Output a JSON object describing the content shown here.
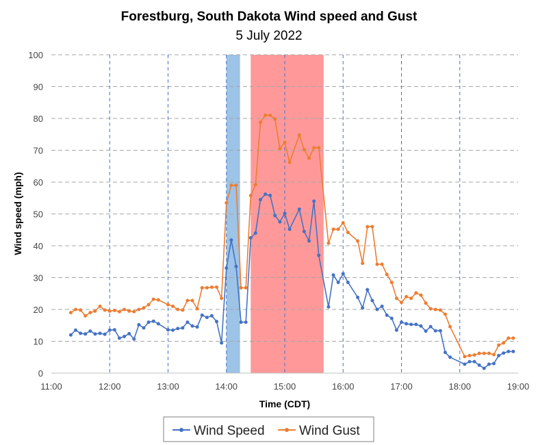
{
  "chart_data": {
    "type": "line",
    "title": "Forestburg, South Dakota Wind speed and Gust",
    "subtitle": "5 July 2022",
    "xlabel": "Time (CDT)",
    "ylabel": "Wind speed (mph)",
    "xlim": [
      "11:00",
      "19:00"
    ],
    "ylim": [
      0,
      100
    ],
    "x_ticks": [
      "11:00",
      "12:00",
      "13:00",
      "14:00",
      "15:00",
      "16:00",
      "17:00",
      "18:00",
      "19:00"
    ],
    "y_ticks": [
      "0",
      "10",
      "20",
      "30",
      "40",
      "50",
      "60",
      "70",
      "80",
      "90",
      "100"
    ],
    "grid": "horizontal dashed gray, vertical dashed blue",
    "legend_position": "bottom",
    "shaded_regions": [
      {
        "start": "14:00",
        "end": "14:14",
        "color": "#9dc3e6"
      },
      {
        "start": "14:25",
        "end": "15:40",
        "color": "#ff9999"
      }
    ],
    "series": [
      {
        "name": "Wind Speed",
        "color": "#4472c4",
        "points": [
          [
            "11:20",
            12
          ],
          [
            "11:25",
            13.5
          ],
          [
            "11:30",
            12.5
          ],
          [
            "11:35",
            12.3
          ],
          [
            "11:40",
            13.2
          ],
          [
            "11:45",
            12.3
          ],
          [
            "11:50",
            12.5
          ],
          [
            "11:55",
            12.2
          ],
          [
            "12:00",
            13.5
          ],
          [
            "12:05",
            13.6
          ],
          [
            "12:10",
            11
          ],
          [
            "12:15",
            11.5
          ],
          [
            "12:20",
            12.4
          ],
          [
            "12:25",
            10.7
          ],
          [
            "12:30",
            15.2
          ],
          [
            "12:35",
            14.2
          ],
          [
            "12:40",
            16
          ],
          [
            "12:45",
            16.3
          ],
          [
            "12:50",
            15.5
          ],
          [
            "13:00",
            13.6
          ],
          [
            "13:05",
            13.5
          ],
          [
            "13:10",
            14
          ],
          [
            "13:15",
            14.2
          ],
          [
            "13:20",
            16
          ],
          [
            "13:25",
            14.8
          ],
          [
            "13:30",
            14.5
          ],
          [
            "13:35",
            18.2
          ],
          [
            "13:40",
            17.5
          ],
          [
            "13:45",
            18
          ],
          [
            "13:50",
            16.2
          ],
          [
            "13:55",
            9.5
          ],
          [
            "14:00",
            33
          ],
          [
            "14:05",
            41.8
          ],
          [
            "14:10",
            33.5
          ],
          [
            "14:15",
            16
          ],
          [
            "14:20",
            16
          ],
          [
            "14:25",
            42.5
          ],
          [
            "14:30",
            44
          ],
          [
            "14:35",
            54.5
          ],
          [
            "14:40",
            56.2
          ],
          [
            "14:45",
            55.8
          ],
          [
            "14:50",
            49.5
          ],
          [
            "14:55",
            47.5
          ],
          [
            "15:00",
            50.2
          ],
          [
            "15:05",
            45.2
          ],
          [
            "15:15",
            51.5
          ],
          [
            "15:20",
            44.5
          ],
          [
            "15:25",
            41.5
          ],
          [
            "15:30",
            54
          ],
          [
            "15:35",
            37
          ],
          [
            "15:45",
            20.8
          ],
          [
            "15:50",
            30.8
          ],
          [
            "15:55",
            28.5
          ],
          [
            "16:00",
            31.2
          ],
          [
            "16:05",
            28.5
          ],
          [
            "16:15",
            23.8
          ],
          [
            "16:20",
            20.5
          ],
          [
            "16:25",
            26.2
          ],
          [
            "16:30",
            22.8
          ],
          [
            "16:35",
            20
          ],
          [
            "16:40",
            21
          ],
          [
            "16:45",
            18.2
          ],
          [
            "16:50",
            17.2
          ],
          [
            "16:55",
            13.5
          ],
          [
            "17:00",
            16
          ],
          [
            "17:05",
            15.5
          ],
          [
            "17:10",
            15.3
          ],
          [
            "17:15",
            15.3
          ],
          [
            "17:20",
            14.8
          ],
          [
            "17:25",
            13.2
          ],
          [
            "17:30",
            14.6
          ],
          [
            "17:35",
            13.3
          ],
          [
            "17:40",
            13.3
          ],
          [
            "17:45",
            6.5
          ],
          [
            "17:50",
            5
          ],
          [
            "18:05",
            2.8
          ],
          [
            "18:10",
            3.6
          ],
          [
            "18:15",
            3.6
          ],
          [
            "18:20",
            2.5
          ],
          [
            "18:25",
            1.5
          ],
          [
            "18:30",
            2.8
          ],
          [
            "18:35",
            3
          ],
          [
            "18:40",
            5.5
          ],
          [
            "18:45",
            6.3
          ],
          [
            "18:50",
            6.8
          ],
          [
            "18:55",
            6.8
          ]
        ]
      },
      {
        "name": "Wind Gust",
        "color": "#ed7d31",
        "points": [
          [
            "11:20",
            19
          ],
          [
            "11:25",
            20
          ],
          [
            "11:30",
            19.8
          ],
          [
            "11:35",
            18
          ],
          [
            "11:40",
            19
          ],
          [
            "11:45",
            19.5
          ],
          [
            "11:50",
            21
          ],
          [
            "11:55",
            19.8
          ],
          [
            "12:00",
            19.5
          ],
          [
            "12:05",
            19.7
          ],
          [
            "12:10",
            19.3
          ],
          [
            "12:15",
            20
          ],
          [
            "12:20",
            19.5
          ],
          [
            "12:25",
            19.3
          ],
          [
            "12:30",
            20
          ],
          [
            "12:35",
            20.5
          ],
          [
            "12:40",
            21.5
          ],
          [
            "12:45",
            23.2
          ],
          [
            "12:50",
            23
          ],
          [
            "13:00",
            21.5
          ],
          [
            "13:05",
            21
          ],
          [
            "13:10",
            20
          ],
          [
            "13:15",
            19.8
          ],
          [
            "13:20",
            22.8
          ],
          [
            "13:25",
            22.8
          ],
          [
            "13:30",
            20.2
          ],
          [
            "13:35",
            26.8
          ],
          [
            "13:40",
            26.8
          ],
          [
            "13:45",
            27
          ],
          [
            "13:50",
            27
          ],
          [
            "13:55",
            23.5
          ],
          [
            "14:00",
            53.5
          ],
          [
            "14:05",
            59
          ],
          [
            "14:10",
            59
          ],
          [
            "14:15",
            26.8
          ],
          [
            "14:20",
            26.8
          ],
          [
            "14:25",
            55.8
          ],
          [
            "14:30",
            59.2
          ],
          [
            "14:35",
            78.8
          ],
          [
            "14:40",
            81
          ],
          [
            "14:45",
            81
          ],
          [
            "14:50",
            79.8
          ],
          [
            "14:55",
            70.5
          ],
          [
            "15:00",
            72.5
          ],
          [
            "15:05",
            66.2
          ],
          [
            "15:15",
            74.8
          ],
          [
            "15:20",
            70.2
          ],
          [
            "15:25",
            67.5
          ],
          [
            "15:30",
            70.8
          ],
          [
            "15:35",
            70.8
          ],
          [
            "15:45",
            40.8
          ],
          [
            "15:50",
            45.2
          ],
          [
            "15:55",
            45.2
          ],
          [
            "16:00",
            47.2
          ],
          [
            "16:05",
            44.2
          ],
          [
            "16:15",
            41.5
          ],
          [
            "16:20",
            34.5
          ],
          [
            "16:25",
            46
          ],
          [
            "16:30",
            46
          ],
          [
            "16:35",
            34.2
          ],
          [
            "16:40",
            34.2
          ],
          [
            "16:45",
            31
          ],
          [
            "16:50",
            28.5
          ],
          [
            "16:55",
            23.5
          ],
          [
            "17:00",
            22.2
          ],
          [
            "17:05",
            24
          ],
          [
            "17:10",
            23.5
          ],
          [
            "17:15",
            25.2
          ],
          [
            "17:20",
            24.5
          ],
          [
            "17:25",
            22
          ],
          [
            "17:30",
            20.2
          ],
          [
            "17:35",
            20
          ],
          [
            "17:40",
            19.8
          ],
          [
            "17:45",
            18.5
          ],
          [
            "17:50",
            14.6
          ],
          [
            "18:05",
            5.2
          ],
          [
            "18:10",
            5.5
          ],
          [
            "18:15",
            5.7
          ],
          [
            "18:20",
            6.2
          ],
          [
            "18:25",
            6.2
          ],
          [
            "18:30",
            6.2
          ],
          [
            "18:35",
            5.8
          ],
          [
            "18:40",
            8.8
          ],
          [
            "18:45",
            9.5
          ],
          [
            "18:50",
            11
          ],
          [
            "18:55",
            11
          ]
        ]
      }
    ]
  }
}
